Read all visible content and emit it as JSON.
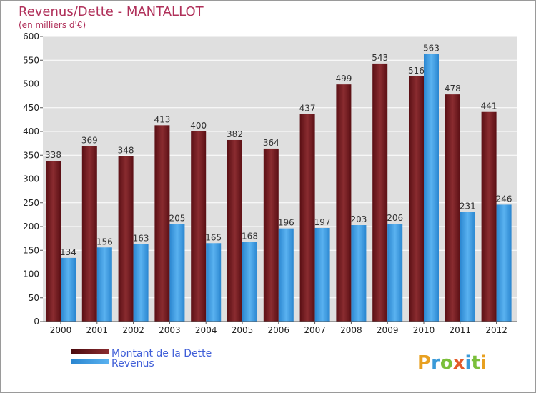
{
  "chart_data": {
    "type": "bar",
    "title": "Revenus/Dette - MANTALLOT",
    "subtitle": "(en milliers d'€)",
    "categories": [
      "2000",
      "2001",
      "2002",
      "2003",
      "2004",
      "2005",
      "2006",
      "2007",
      "2008",
      "2009",
      "2010",
      "2011",
      "2012"
    ],
    "series": [
      {
        "name": "Montant de la Dette",
        "values": [
          338,
          369,
          348,
          413,
          400,
          382,
          364,
          437,
          499,
          543,
          516,
          478,
          441
        ],
        "color": "#7a1f24"
      },
      {
        "name": "Revenus",
        "values": [
          134,
          156,
          163,
          205,
          165,
          168,
          196,
          197,
          203,
          206,
          563,
          231,
          246
        ],
        "color": "#3d9ee6"
      }
    ],
    "ylim": [
      0,
      600
    ],
    "yticks": [
      "0",
      "50",
      "100",
      "150",
      "200",
      "250",
      "300",
      "350",
      "400",
      "450",
      "500",
      "550",
      "600"
    ],
    "grid": true,
    "legend": "bottom-left"
  },
  "logo": {
    "text": "Proxiti"
  }
}
